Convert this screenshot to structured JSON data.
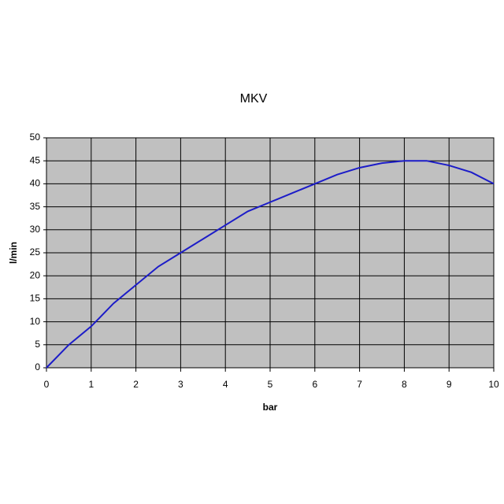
{
  "chart_data": {
    "type": "line",
    "title": "MKV",
    "x_label": "bar",
    "y_label": "l/min",
    "x": [
      0,
      0.5,
      1,
      1.5,
      2,
      2.5,
      3,
      3.5,
      4,
      4.5,
      5,
      5.5,
      6,
      6.5,
      7,
      7.5,
      8,
      8.5,
      9,
      9.5,
      10
    ],
    "series": [
      {
        "name": "MKV",
        "color": "#1c1cc8",
        "values": [
          0,
          5,
          9,
          14,
          18,
          22,
          25,
          28,
          31,
          34,
          36,
          38,
          40,
          42,
          43.5,
          44.5,
          45,
          45,
          44,
          42.5,
          40
        ]
      }
    ],
    "xlim": [
      0,
      10
    ],
    "xticks": [
      0,
      1,
      2,
      3,
      4,
      5,
      6,
      7,
      8,
      9,
      10
    ],
    "ylim": [
      0,
      50
    ],
    "yticks": [
      0,
      5,
      10,
      15,
      20,
      25,
      30,
      35,
      40,
      45,
      50
    ],
    "grid": true,
    "plot_background": "#c0c0c0"
  }
}
